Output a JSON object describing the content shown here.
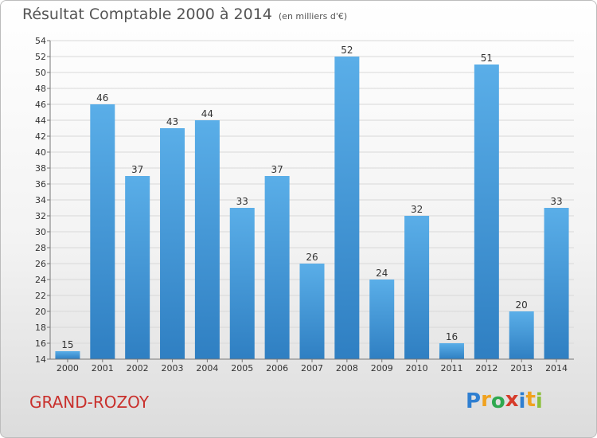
{
  "title": "Résultat Comptable 2000 à 2014",
  "subtitle": "(en milliers d'€)",
  "place": "GRAND-ROZOY",
  "logo": {
    "letters": [
      "P",
      "r",
      "o",
      "x",
      "i",
      "t",
      "i"
    ],
    "colors": [
      "#2f7fd1",
      "#f0a21f",
      "#2fa84f",
      "#d63b2a",
      "#2f7fd1",
      "#f0a21f",
      "#8bbf3b"
    ]
  },
  "colors": {
    "bar_light": "#5aaee8",
    "bar_dark": "#2f7fc2",
    "grid": "#d8d8d8"
  },
  "chart_data": {
    "type": "bar",
    "categories": [
      "2000",
      "2001",
      "2002",
      "2003",
      "2004",
      "2005",
      "2006",
      "2007",
      "2008",
      "2009",
      "2010",
      "2011",
      "2012",
      "2013",
      "2014"
    ],
    "values": [
      15,
      46,
      37,
      43,
      44,
      33,
      37,
      26,
      52,
      24,
      32,
      16,
      51,
      20,
      33
    ],
    "ylim": [
      14,
      54
    ],
    "yticks": [
      14,
      16,
      18,
      20,
      22,
      24,
      26,
      28,
      30,
      32,
      34,
      36,
      38,
      40,
      42,
      44,
      46,
      48,
      50,
      52,
      54
    ],
    "grid": true
  }
}
